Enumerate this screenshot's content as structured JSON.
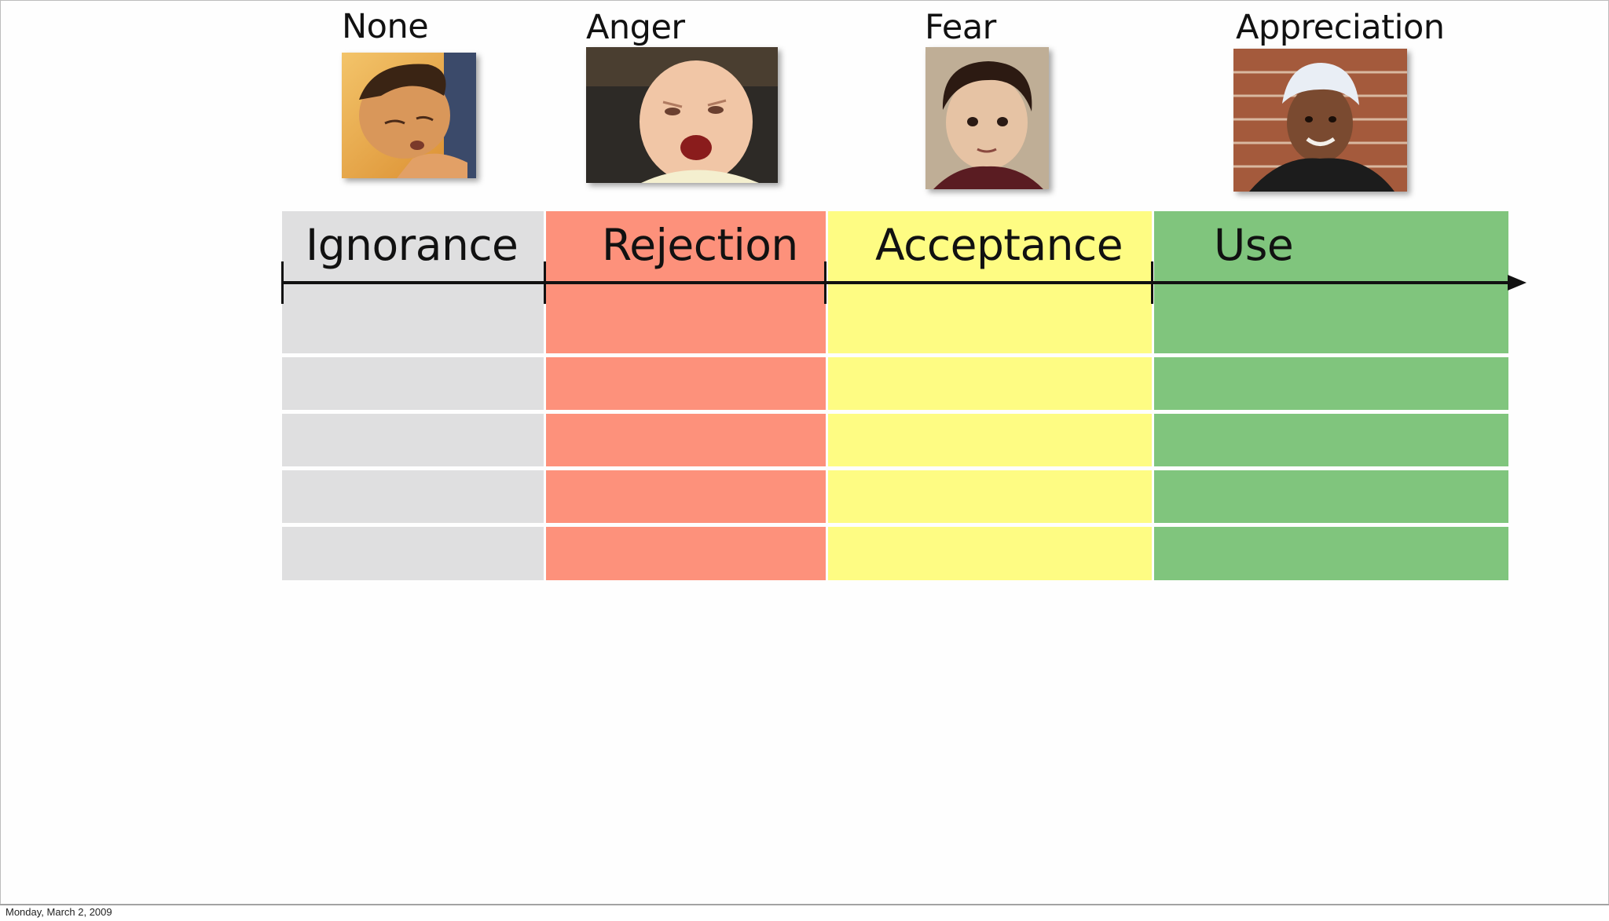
{
  "emotions": [
    {
      "label": "None",
      "photo": "sleeping-child-photo"
    },
    {
      "label": "Anger",
      "photo": "angry-baby-photo"
    },
    {
      "label": "Fear",
      "photo": "scared-boy-photo"
    },
    {
      "label": "Appreciation",
      "photo": "smiling-girl-photo"
    }
  ],
  "stages": [
    {
      "label": "Ignorance",
      "color": "#dfdfe0"
    },
    {
      "label": "Rejection",
      "color": "#fd917b"
    },
    {
      "label": "Acceptance",
      "color": "#fefc83"
    },
    {
      "label": "Use",
      "color": "#80c57d"
    }
  ],
  "footer": {
    "date": "Monday, March 2, 2009"
  }
}
